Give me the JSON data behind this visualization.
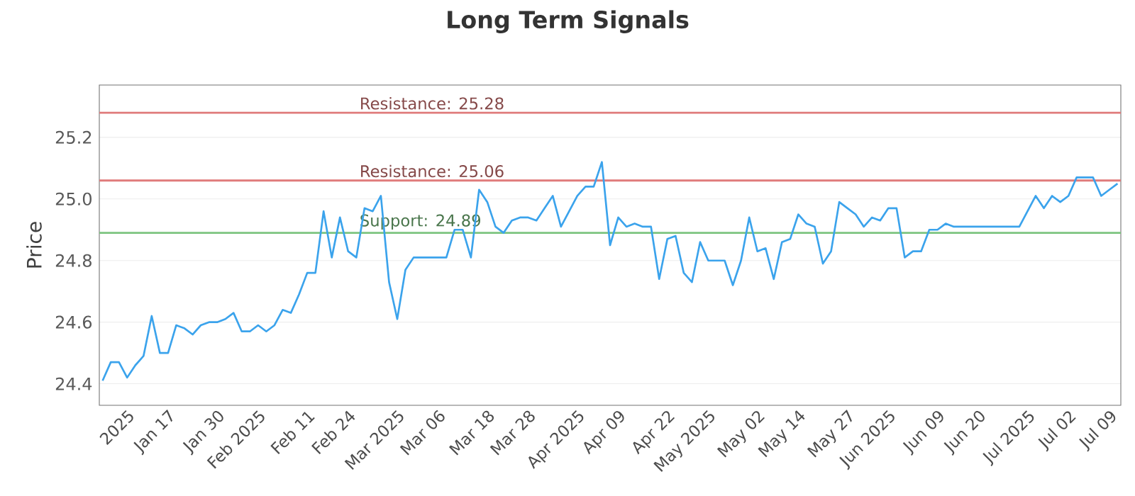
{
  "chart_data": {
    "type": "line",
    "title": "Long Term Signals",
    "ylabel": "Price",
    "categories": [
      null,
      null,
      null,
      "2025",
      null,
      null,
      null,
      null,
      "Jan 17",
      null,
      null,
      null,
      null,
      null,
      "Jan 30",
      null,
      null,
      null,
      null,
      "Feb 2025",
      null,
      null,
      null,
      null,
      null,
      "Feb 11",
      null,
      null,
      null,
      null,
      "Feb 24",
      null,
      null,
      null,
      null,
      null,
      "Mar 2025",
      null,
      null,
      null,
      null,
      "Mar 06",
      null,
      null,
      null,
      null,
      null,
      "Mar 18",
      null,
      null,
      null,
      null,
      "Mar 28",
      null,
      null,
      null,
      null,
      null,
      "Apr 2025",
      null,
      null,
      null,
      null,
      "Apr 09",
      null,
      null,
      null,
      null,
      null,
      "Apr 22",
      null,
      null,
      null,
      null,
      "May 2025",
      null,
      null,
      null,
      null,
      null,
      "May 02",
      null,
      null,
      null,
      null,
      "May 14",
      null,
      null,
      null,
      null,
      null,
      "May 27",
      null,
      null,
      null,
      null,
      "Jun 2025",
      null,
      null,
      null,
      null,
      null,
      "Jun 09",
      null,
      null,
      null,
      null,
      "Jun 20",
      null,
      null,
      null,
      null,
      null,
      "Jul 2025",
      null,
      null,
      null,
      null,
      "Jul 02",
      null,
      null,
      null,
      null,
      "Jul 09",
      null
    ],
    "series": [
      {
        "color": "#3ba3ec",
        "values": [
          24.41,
          24.47,
          24.47,
          24.42,
          24.46,
          24.49,
          24.62,
          24.5,
          24.5,
          24.59,
          24.58,
          24.56,
          24.59,
          24.6,
          24.6,
          24.61,
          24.63,
          24.57,
          24.57,
          24.59,
          24.57,
          24.59,
          24.64,
          24.63,
          24.69,
          24.76,
          24.76,
          24.96,
          24.81,
          24.94,
          24.83,
          24.81,
          24.97,
          24.96,
          25.01,
          24.73,
          24.61,
          24.77,
          24.81,
          24.81,
          24.81,
          24.81,
          24.81,
          24.9,
          24.9,
          24.81,
          25.03,
          24.99,
          24.91,
          24.89,
          24.93,
          24.94,
          24.94,
          24.93,
          24.97,
          25.01,
          24.91,
          24.96,
          25.01,
          25.04,
          25.04,
          25.12,
          24.85,
          24.94,
          24.91,
          24.92,
          24.91,
          24.91,
          24.74,
          24.87,
          24.88,
          24.76,
          24.73,
          24.86,
          24.8,
          24.8,
          24.8,
          24.72,
          24.8,
          24.94,
          24.83,
          24.84,
          24.74,
          24.86,
          24.87,
          24.95,
          24.92,
          24.91,
          24.79,
          24.83,
          24.99,
          24.97,
          24.95,
          24.91,
          24.94,
          24.93,
          24.97,
          24.97,
          24.81,
          24.83,
          24.83,
          24.9,
          24.9,
          24.92,
          24.91,
          24.91,
          24.91,
          24.91,
          24.91,
          24.91,
          24.91,
          24.91,
          24.91,
          24.96,
          25.01,
          24.97,
          25.01,
          24.99,
          25.01,
          25.07,
          25.07,
          25.07,
          25.01,
          25.03,
          25.05
        ]
      }
    ],
    "ylim": [
      24.33,
      25.37
    ],
    "yticks": [
      24.4,
      24.6,
      24.8,
      {
        "value": 25,
        "label": "25.0"
      },
      25.2
    ],
    "grid": "y",
    "marker": "none",
    "line_style": "solid",
    "ref_lines": [
      {
        "axis": "y",
        "value": 25.28,
        "label": "Resistance: 25.28",
        "color": "#e07b7b"
      },
      {
        "axis": "y",
        "value": 25.06,
        "label": "Resistance: 25.06",
        "color": "#e07b7b"
      },
      {
        "axis": "y",
        "value": 24.89,
        "label": "Support: 24.89",
        "color": "#7cc47f"
      }
    ]
  }
}
